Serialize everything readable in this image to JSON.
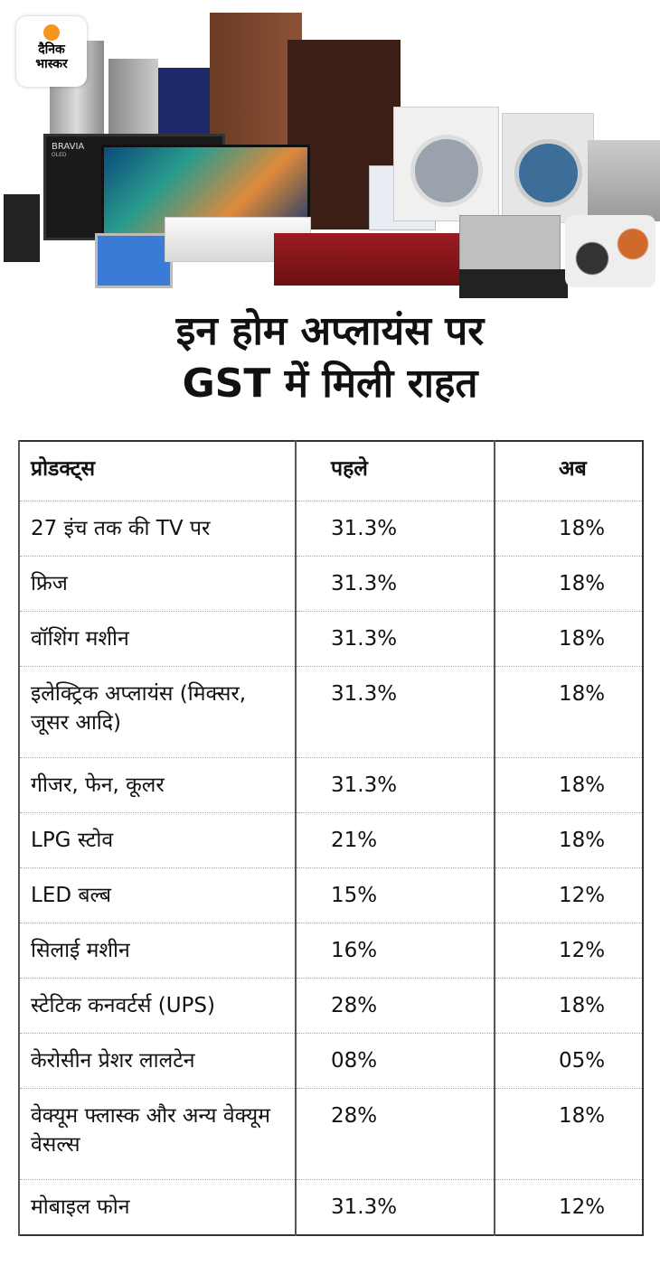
{
  "brand": {
    "logo_line1": "दैनिक",
    "logo_line2": "भास्कर",
    "accent": "#f7941d"
  },
  "hero": {
    "tv_brand": "BRAVIA",
    "tv_sub": "OLED"
  },
  "title": {
    "line1": "इन होम अप्लायंस पर",
    "line2": "GST में मिली राहत"
  },
  "table": {
    "headers": [
      "प्रोडक्ट्स",
      "पहले",
      "अब"
    ],
    "rows": [
      {
        "product": "27 इंच तक की TV पर",
        "before": "31.3%",
        "now": "18%"
      },
      {
        "product": "फ्रिज",
        "before": "31.3%",
        "now": "18%"
      },
      {
        "product": "वॉशिंग मशीन",
        "before": "31.3%",
        "now": "18%"
      },
      {
        "product": "इलेक्ट्रिक अप्लायंस (मिक्सर, जूसर आदि)",
        "before": "31.3%",
        "now": "18%"
      },
      {
        "product": "गीजर, फेन, कूलर",
        "before": "31.3%",
        "now": "18%"
      },
      {
        "product": "LPG स्टोव",
        "before": "21%",
        "now": "18%"
      },
      {
        "product": "LED बल्ब",
        "before": "15%",
        "now": "12%"
      },
      {
        "product": "सिलाई मशीन",
        "before": "16%",
        "now": "12%"
      },
      {
        "product": "स्टेटिक कनवर्टर्स (UPS)",
        "before": "28%",
        "now": "18%"
      },
      {
        "product": "केरोसीन प्रेशर लालटेन",
        "before": "08%",
        "now": "05%"
      },
      {
        "product": "वेक्यूम फ्लास्क और अन्य वेक्यूम वेसल्स",
        "before": "28%",
        "now": "18%"
      },
      {
        "product": "मोबाइल फोन",
        "before": "31.3%",
        "now": "12%"
      }
    ]
  }
}
